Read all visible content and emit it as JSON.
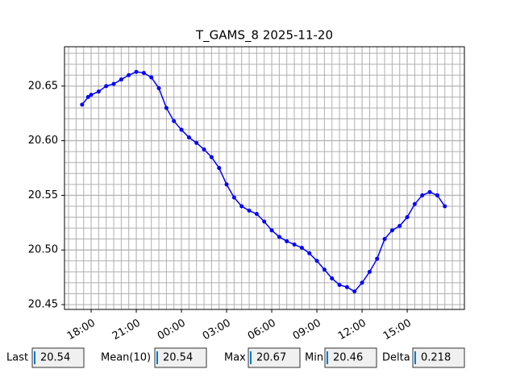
{
  "chart_data": {
    "type": "line",
    "title": "T_GAMS_8 2025-11-20",
    "x": [
      17.4,
      17.8,
      18.0,
      18.5,
      19.0,
      19.5,
      20.0,
      20.5,
      21.0,
      21.5,
      22.0,
      22.5,
      23.0,
      23.5,
      24.0,
      24.5,
      25.0,
      25.5,
      26.0,
      26.5,
      27.0,
      27.5,
      28.0,
      28.5,
      29.0,
      29.5,
      30.0,
      30.5,
      31.0,
      31.5,
      32.0,
      32.5,
      33.0,
      33.5,
      34.0,
      34.5,
      35.0,
      35.5,
      36.0,
      36.5,
      37.0,
      37.5,
      38.0,
      38.5,
      39.0,
      39.5,
      40.0,
      40.5,
      41.0,
      41.5
    ],
    "series": [
      {
        "color": "#0000ff",
        "values": [
          20.633,
          20.64,
          20.642,
          20.645,
          20.65,
          20.652,
          20.656,
          20.66,
          20.663,
          20.662,
          20.658,
          20.648,
          20.63,
          20.618,
          20.61,
          20.603,
          20.598,
          20.592,
          20.585,
          20.575,
          20.56,
          20.548,
          20.54,
          20.536,
          20.533,
          20.526,
          20.518,
          20.512,
          20.508,
          20.505,
          20.502,
          20.497,
          20.49,
          20.482,
          20.474,
          20.468,
          20.466,
          20.462,
          20.47,
          20.48,
          20.492,
          20.51,
          20.518,
          20.522,
          20.53,
          20.542,
          20.55,
          20.553,
          20.55,
          20.54
        ]
      }
    ],
    "xlim": [
      16.23,
      42.8
    ],
    "xticks": [
      {
        "value": 18,
        "label": "18:00"
      },
      {
        "value": 21,
        "label": "21:00"
      },
      {
        "value": 24,
        "label": "00:00"
      },
      {
        "value": 27,
        "label": "03:00"
      },
      {
        "value": 30,
        "label": "06:00"
      },
      {
        "value": 33,
        "label": "09:00"
      },
      {
        "value": 36,
        "label": "12:00"
      },
      {
        "value": 39,
        "label": "15:00"
      }
    ],
    "ylim": [
      20.4456,
      20.686
    ],
    "yticks": [
      20.45,
      {
        "value": 20.5,
        "label": "20.50"
      },
      20.55,
      {
        "value": 20.6,
        "label": "20.60"
      },
      20.65
    ],
    "grid": true
  },
  "stats": [
    {
      "label": "Last",
      "value": 20.54
    },
    {
      "label": "Mean(10)",
      "value": 20.54
    },
    {
      "label": "Max",
      "value": 20.67
    },
    {
      "label": "Min",
      "value": 20.46
    },
    {
      "label": "Delta",
      "value": 0.218
    }
  ]
}
